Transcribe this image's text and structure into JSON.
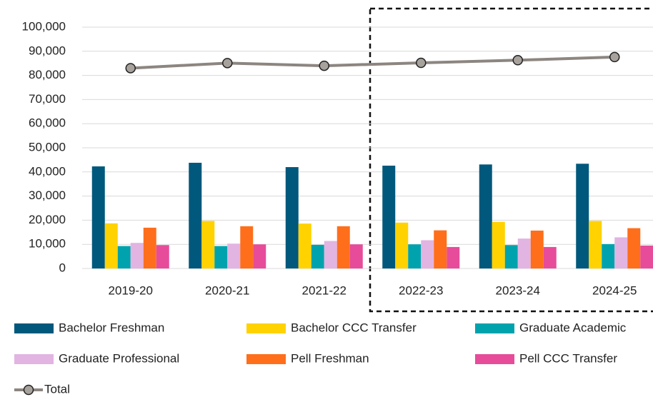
{
  "chart_data": {
    "type": "bar_line",
    "categories": [
      "2019-20",
      "2020-21",
      "2021-22",
      "2022-23",
      "2023-24",
      "2024-25"
    ],
    "series": [
      {
        "name": "Bachelor Freshman",
        "color": "#00587c",
        "type": "bar",
        "values": [
          42300,
          43800,
          42000,
          42600,
          43100,
          43400
        ]
      },
      {
        "name": "Bachelor CCC Transfer",
        "color": "#ffd200",
        "type": "bar",
        "values": [
          18700,
          19700,
          18600,
          19000,
          19300,
          19700
        ]
      },
      {
        "name": "Graduate Academic",
        "color": "#00a3ad",
        "type": "bar",
        "values": [
          9300,
          9300,
          9800,
          10000,
          9700,
          10100
        ]
      },
      {
        "name": "Graduate Professional",
        "color": "#e2b4e2",
        "type": "bar",
        "values": [
          10600,
          10300,
          11400,
          11700,
          12400,
          12900
        ]
      },
      {
        "name": "Pell Freshman",
        "color": "#ff6e1b",
        "type": "bar",
        "values": [
          16900,
          17500,
          17500,
          15800,
          15700,
          16700
        ]
      },
      {
        "name": "Pell CCC Transfer",
        "color": "#e64c9a",
        "type": "bar",
        "values": [
          9700,
          10000,
          10000,
          8900,
          8900,
          9500
        ]
      },
      {
        "name": "Total",
        "color": "#8c8580",
        "type": "line",
        "values": [
          83000,
          85100,
          84000,
          85200,
          86300,
          87600
        ]
      }
    ],
    "ylim": [
      0,
      100000
    ],
    "yticks": [
      0,
      {
        "value": 10000,
        "label": "10,000"
      },
      {
        "value": 20000,
        "label": "20,000"
      },
      {
        "value": 30000,
        "label": "30,000"
      },
      {
        "value": 40000,
        "label": "40,000"
      },
      {
        "value": 50000,
        "label": "50,000"
      },
      {
        "value": 60000,
        "label": "60,000"
      },
      {
        "value": 70000,
        "label": "70,000"
      },
      {
        "value": 80000,
        "label": "80,000"
      },
      {
        "value": 90000,
        "label": "90,000"
      },
      {
        "value": 100000,
        "label": "100,000"
      }
    ],
    "grid": true,
    "legend": "bottom"
  }
}
